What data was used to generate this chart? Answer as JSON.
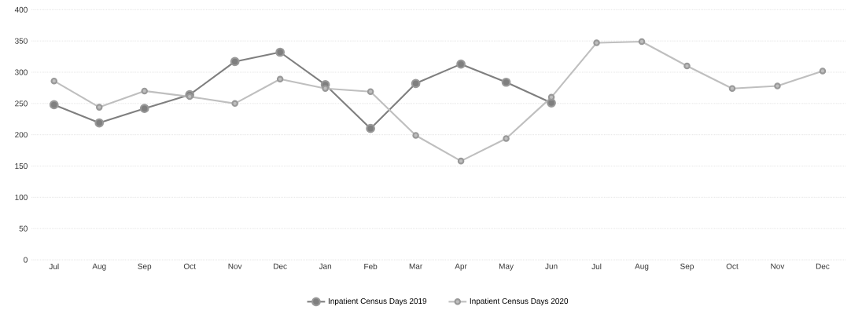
{
  "chart_data": {
    "type": "line",
    "categories": [
      "Jul",
      "Aug",
      "Sep",
      "Oct",
      "Nov",
      "Dec",
      "Jan",
      "Feb",
      "Mar",
      "Apr",
      "May",
      "Jun",
      "Jul",
      "Aug",
      "Sep",
      "Oct",
      "Nov",
      "Dec"
    ],
    "series": [
      {
        "name": "Inpatient Census Days 2019",
        "color": "#7f7f7f",
        "values": [
          248,
          219,
          242,
          264,
          317,
          332,
          280,
          210,
          282,
          313,
          284,
          251,
          null,
          null,
          null,
          null,
          null,
          null
        ]
      },
      {
        "name": "Inpatient Census Days 2020",
        "color": "#bfbfbf",
        "values": [
          286,
          244,
          270,
          261,
          250,
          289,
          274,
          269,
          199,
          158,
          194,
          260,
          347,
          349,
          310,
          274,
          278,
          302
        ]
      }
    ],
    "ylim": [
      0,
      400
    ],
    "yticks": [
      0,
      50,
      100,
      150,
      200,
      250,
      300,
      350,
      400
    ],
    "grid": "y",
    "legend": "bottom",
    "marker": "circle",
    "line_style": "solid"
  }
}
